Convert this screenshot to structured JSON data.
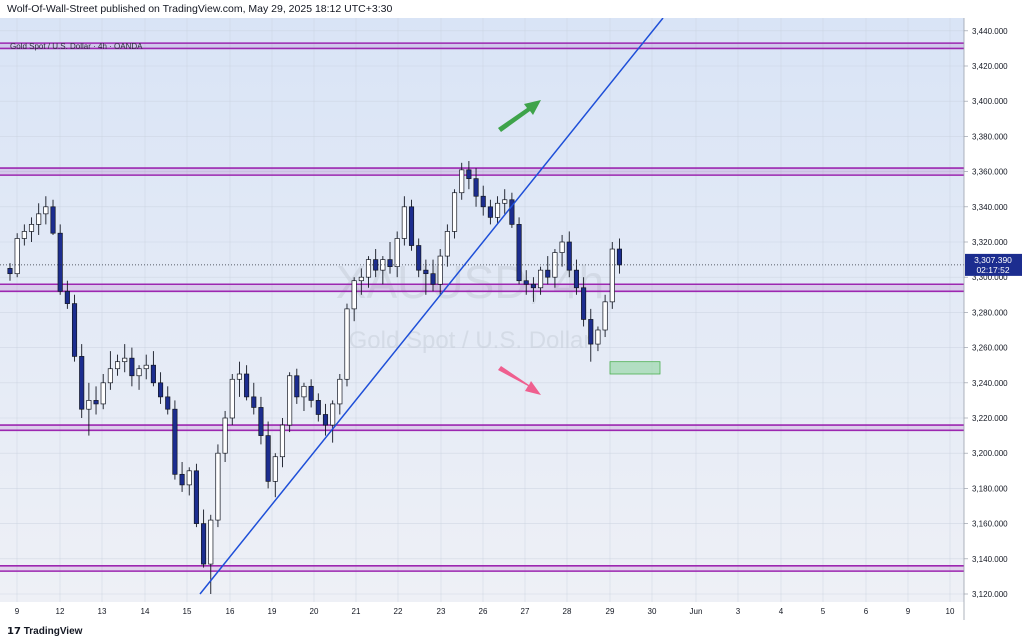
{
  "header": {
    "publish_line": "Wolf-Of-Wall-Street published on TradingView.com, May 29, 2025 18:12 UTC+3:30"
  },
  "legend": {
    "symbol_line": "Gold Spot / U.S. Dollar · 4h · OANDA"
  },
  "watermark": {
    "symbol": "XAUUSD, 4h",
    "description": "Gold Spot / U.S. Dollar"
  },
  "current_price": {
    "value": "3,307.390",
    "countdown": "02:17:52"
  },
  "footer": {
    "logo_text": "TradingView"
  },
  "colors": {
    "background_top": "#dbe6f6",
    "background_bottom": "#eef1f7",
    "bull_candle": "#ffffff",
    "bear_candle": "#1c2d8f",
    "level_line": "#9c27b0",
    "trendline": "#1e4fd8",
    "up_arrow": "#3ea34a",
    "down_arrow": "#ef5f8f",
    "zone_fill": "#8fd6a0"
  },
  "chart_data": {
    "type": "candlestick",
    "symbol": "XAUUSD",
    "timeframe": "4h",
    "y_ticks": [
      "3,440.000",
      "3,420.000",
      "3,400.000",
      "3,380.000",
      "3,360.000",
      "3,340.000",
      "3,320.000",
      "3,300.000",
      "3,280.000",
      "3,260.000",
      "3,240.000",
      "3,220.000",
      "3,200.000",
      "3,180.000",
      "3,160.000",
      "3,140.000",
      "3,120.000"
    ],
    "x_ticks": [
      "9",
      "12",
      "13",
      "14",
      "15",
      "16",
      "19",
      "20",
      "21",
      "22",
      "23",
      "26",
      "27",
      "28",
      "29",
      "30",
      "Jun",
      "3",
      "4",
      "5",
      "6",
      "9",
      "10"
    ],
    "ylim": [
      3120,
      3445
    ],
    "horizontal_levels": [
      {
        "low": 3430,
        "high": 3433
      },
      {
        "low": 3358,
        "high": 3362
      },
      {
        "low": 3292,
        "high": 3296
      },
      {
        "low": 3213,
        "high": 3216
      },
      {
        "low": 3133,
        "high": 3136
      }
    ],
    "trendline": {
      "from": [
        1.5,
        3120
      ],
      "to": [
        16.5,
        3445
      ]
    },
    "zone": {
      "from_index": 14.1,
      "to_index": 14.6,
      "low": 3245,
      "high": 3252
    },
    "candles": [
      [
        3305,
        3308,
        3298,
        3302
      ],
      [
        3302,
        3325,
        3300,
        3322
      ],
      [
        3322,
        3330,
        3318,
        3326
      ],
      [
        3326,
        3334,
        3320,
        3330
      ],
      [
        3330,
        3342,
        3324,
        3336
      ],
      [
        3336,
        3346,
        3330,
        3340
      ],
      [
        3340,
        3344,
        3324,
        3325
      ],
      [
        3325,
        3330,
        3290,
        3292
      ],
      [
        3292,
        3298,
        3282,
        3285
      ],
      [
        3285,
        3290,
        3252,
        3255
      ],
      [
        3255,
        3262,
        3220,
        3225
      ],
      [
        3225,
        3240,
        3210,
        3230
      ],
      [
        3230,
        3238,
        3222,
        3228
      ],
      [
        3228,
        3245,
        3225,
        3240
      ],
      [
        3240,
        3258,
        3236,
        3248
      ],
      [
        3248,
        3256,
        3244,
        3252
      ],
      [
        3252,
        3262,
        3246,
        3254
      ],
      [
        3254,
        3260,
        3238,
        3244
      ],
      [
        3244,
        3250,
        3236,
        3248
      ],
      [
        3248,
        3256,
        3242,
        3250
      ],
      [
        3250,
        3258,
        3238,
        3240
      ],
      [
        3240,
        3246,
        3228,
        3232
      ],
      [
        3232,
        3238,
        3222,
        3225
      ],
      [
        3225,
        3230,
        3185,
        3188
      ],
      [
        3188,
        3195,
        3178,
        3182
      ],
      [
        3182,
        3192,
        3176,
        3190
      ],
      [
        3190,
        3194,
        3158,
        3160
      ],
      [
        3160,
        3168,
        3135,
        3137
      ],
      [
        3137,
        3165,
        3120,
        3162
      ],
      [
        3162,
        3205,
        3158,
        3200
      ],
      [
        3200,
        3224,
        3195,
        3220
      ],
      [
        3220,
        3245,
        3216,
        3242
      ],
      [
        3242,
        3252,
        3232,
        3245
      ],
      [
        3245,
        3250,
        3230,
        3232
      ],
      [
        3232,
        3240,
        3222,
        3226
      ],
      [
        3226,
        3232,
        3205,
        3210
      ],
      [
        3210,
        3218,
        3180,
        3184
      ],
      [
        3184,
        3200,
        3175,
        3198
      ],
      [
        3198,
        3220,
        3192,
        3216
      ],
      [
        3216,
        3246,
        3212,
        3244
      ],
      [
        3244,
        3248,
        3228,
        3232
      ],
      [
        3232,
        3240,
        3224,
        3238
      ],
      [
        3238,
        3242,
        3226,
        3230
      ],
      [
        3230,
        3234,
        3218,
        3222
      ],
      [
        3222,
        3228,
        3210,
        3216
      ],
      [
        3216,
        3230,
        3206,
        3228
      ],
      [
        3228,
        3245,
        3222,
        3242
      ],
      [
        3242,
        3285,
        3238,
        3282
      ],
      [
        3282,
        3300,
        3275,
        3298
      ],
      [
        3298,
        3305,
        3290,
        3300
      ],
      [
        3300,
        3312,
        3294,
        3310
      ],
      [
        3310,
        3316,
        3300,
        3304
      ],
      [
        3304,
        3312,
        3296,
        3310
      ],
      [
        3310,
        3320,
        3302,
        3306
      ],
      [
        3306,
        3326,
        3300,
        3322
      ],
      [
        3322,
        3346,
        3318,
        3340
      ],
      [
        3340,
        3344,
        3315,
        3318
      ],
      [
        3318,
        3322,
        3300,
        3304
      ],
      [
        3304,
        3310,
        3290,
        3302
      ],
      [
        3302,
        3310,
        3292,
        3296
      ],
      [
        3296,
        3316,
        3290,
        3312
      ],
      [
        3312,
        3330,
        3306,
        3326
      ],
      [
        3326,
        3350,
        3322,
        3348
      ],
      [
        3348,
        3365,
        3344,
        3361
      ],
      [
        3361,
        3366,
        3350,
        3356
      ],
      [
        3356,
        3362,
        3340,
        3346
      ],
      [
        3346,
        3352,
        3335,
        3340
      ],
      [
        3340,
        3344,
        3330,
        3334
      ],
      [
        3334,
        3346,
        3330,
        3342
      ],
      [
        3342,
        3350,
        3336,
        3344
      ],
      [
        3344,
        3348,
        3328,
        3330
      ],
      [
        3330,
        3334,
        3296,
        3298
      ],
      [
        3298,
        3304,
        3290,
        3296
      ],
      [
        3296,
        3300,
        3286,
        3294
      ],
      [
        3294,
        3306,
        3290,
        3304
      ],
      [
        3304,
        3312,
        3296,
        3300
      ],
      [
        3300,
        3316,
        3294,
        3314
      ],
      [
        3314,
        3324,
        3306,
        3320
      ],
      [
        3320,
        3326,
        3300,
        3304
      ],
      [
        3304,
        3310,
        3290,
        3294
      ],
      [
        3294,
        3300,
        3272,
        3276
      ],
      [
        3276,
        3282,
        3252,
        3262
      ],
      [
        3262,
        3272,
        3258,
        3270
      ],
      [
        3270,
        3290,
        3266,
        3286
      ],
      [
        3286,
        3320,
        3282,
        3316
      ],
      [
        3316,
        3322,
        3302,
        3307
      ]
    ]
  }
}
